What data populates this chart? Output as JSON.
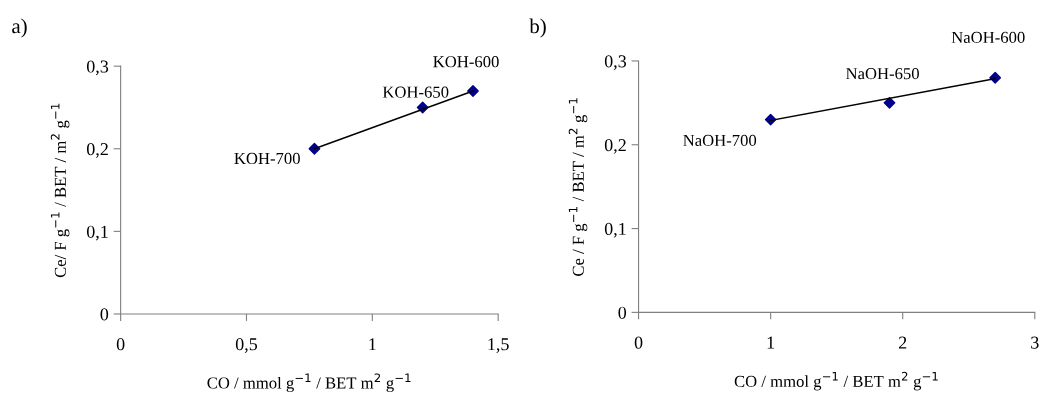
{
  "chart_data": [
    {
      "type": "scatter",
      "title": "a)",
      "xlabel": "CO / mmol g$^{−1}$ / BET m$^{2}$ g$^{−1}$",
      "ylabel": "Ce/ F g$^{−1}$ / BET / m$^{2}$ g$^{−1}$",
      "grid": false,
      "xlim": [
        0,
        1.5
      ],
      "xticks": [
        0,
        {
          "value": 0.5,
          "label": "0,5"
        },
        1,
        {
          "value": 1.5,
          "label": "1,5"
        }
      ],
      "ylim": [
        0,
        0.3
      ],
      "yticks": [
        0,
        {
          "value": 0.1,
          "label": "0,1"
        },
        {
          "value": 0.2,
          "label": "0,2"
        },
        {
          "value": 0.3,
          "label": "0,3"
        }
      ],
      "series": [
        {
          "marker": "diamond",
          "color": "#00008b",
          "x": [
            0.77,
            1.2,
            1.4
          ],
          "values": [
            0.2,
            0.25,
            0.27
          ]
        },
        {
          "type": "line",
          "color": "#000000",
          "x": [
            0.77,
            1.4
          ],
          "values": [
            0.2,
            0.27
          ]
        }
      ],
      "annotations": [
        {
          "text": "KOH-700",
          "x": 0.77,
          "y": 0.2
        },
        {
          "text": "KOH-650",
          "x": 1.2,
          "y": 0.25
        },
        {
          "text": "KOH-600",
          "x": 1.4,
          "y": 0.27
        }
      ]
    },
    {
      "type": "scatter",
      "title": "b)",
      "xlabel": "CO / mmol g$^{−1}$ / BET m$^{2}$ g$^{−1}$",
      "ylabel": "Ce / F g$^{−1}$ / BET / m$^{2}$ g$^{−1}$",
      "grid": false,
      "xlim": [
        0,
        3
      ],
      "xticks": [
        0,
        1,
        2,
        3
      ],
      "ylim": [
        0,
        0.3
      ],
      "yticks": [
        0,
        {
          "value": 0.1,
          "label": "0,1"
        },
        {
          "value": 0.2,
          "label": "0,2"
        },
        {
          "value": 0.3,
          "label": "0,3"
        }
      ],
      "series": [
        {
          "marker": "diamond",
          "color": "#00008b",
          "x": [
            1.0,
            1.9,
            2.7
          ],
          "values": [
            0.23,
            0.25,
            0.28
          ]
        },
        {
          "type": "line",
          "color": "#000000",
          "x": [
            1.0,
            2.7
          ],
          "values": [
            0.229,
            0.279
          ]
        }
      ],
      "annotations": [
        {
          "text": "NaOH-700",
          "x": 1.0,
          "y": 0.23
        },
        {
          "text": "NaOH-650",
          "x": 1.9,
          "y": 0.25
        },
        {
          "text": "NaOH-600",
          "x": 2.7,
          "y": 0.28
        }
      ]
    }
  ]
}
